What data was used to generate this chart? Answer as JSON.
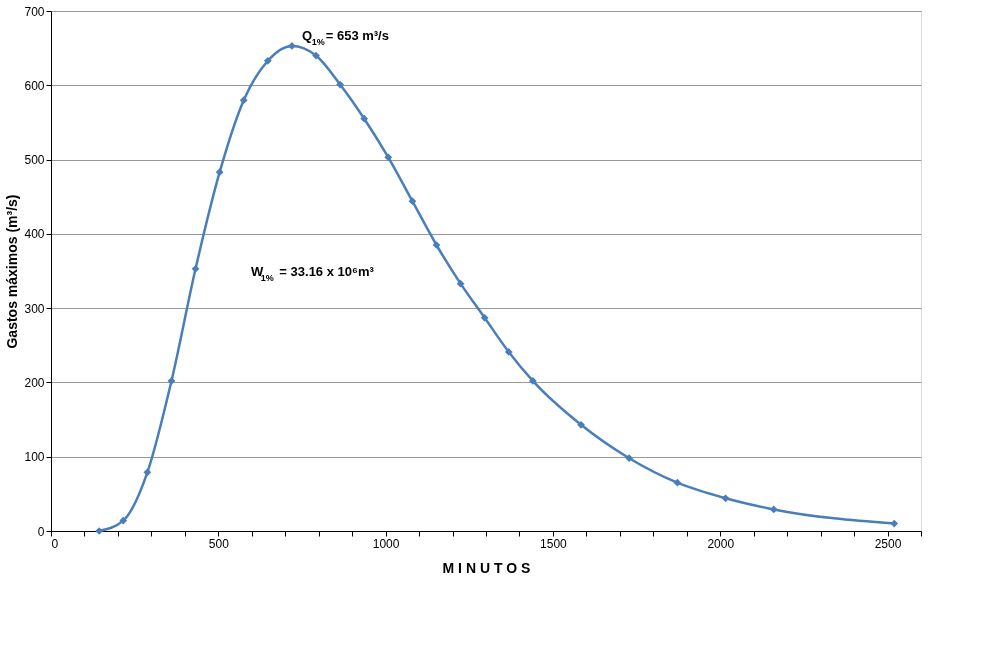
{
  "chart_data": {
    "type": "line",
    "xlabel": "M I N U T O S",
    "ylabel": "Gastos máximos (m³/s)",
    "x": [
      144,
      216,
      288,
      360,
      432,
      504,
      576,
      648,
      720,
      792,
      864,
      936,
      1008,
      1080,
      1152,
      1224,
      1296,
      1368,
      1440,
      1584,
      1728,
      1872,
      2016,
      2160,
      2520
    ],
    "series": [
      {
        "color": "#4a7ebb",
        "values": [
          0,
          14,
          79,
          202,
          353,
          483,
          580,
          633,
          653,
          640,
          601,
          555,
          503,
          444,
          385,
          333,
          287,
          241,
          202,
          143,
          98,
          65,
          44,
          29,
          10
        ]
      }
    ],
    "xlim": [
      0,
      2600
    ],
    "xticks": [
      0,
      {
        "value": 100,
        "label": null
      },
      {
        "value": 200,
        "label": null
      },
      {
        "value": 300,
        "label": null
      },
      {
        "value": 400,
        "label": null
      },
      500,
      {
        "value": 600,
        "label": null
      },
      {
        "value": 700,
        "label": null
      },
      {
        "value": 800,
        "label": null
      },
      {
        "value": 900,
        "label": null
      },
      1000,
      {
        "value": 1100,
        "label": null
      },
      {
        "value": 1200,
        "label": null
      },
      {
        "value": 1300,
        "label": null
      },
      {
        "value": 1400,
        "label": null
      },
      1500,
      {
        "value": 1600,
        "label": null
      },
      {
        "value": 1700,
        "label": null
      },
      {
        "value": 1800,
        "label": null
      },
      {
        "value": 1900,
        "label": null
      },
      2000,
      {
        "value": 2100,
        "label": null
      },
      {
        "value": 2200,
        "label": null
      },
      {
        "value": 2300,
        "label": null
      },
      {
        "value": 2400,
        "label": null
      },
      2500,
      {
        "value": 2600,
        "label": null
      }
    ],
    "ylim": [
      0,
      700
    ],
    "yticks": [
      0,
      100,
      200,
      300,
      400,
      500,
      600,
      700
    ],
    "grid": "y",
    "marker": "diamond",
    "line_style": "solid",
    "annotations": [
      {
        "text": "Q$_{1%}$= 653 m³/s",
        "x": 720,
        "y": 653
      },
      "W$_{1%}$ = 33.16 x 10⁶m³"
    ]
  }
}
